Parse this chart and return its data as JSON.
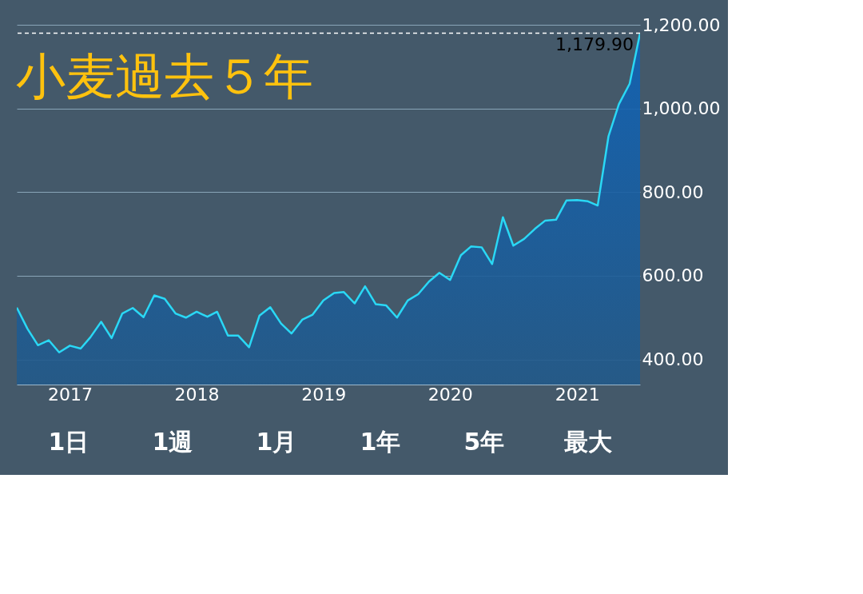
{
  "chart_data": {
    "type": "area",
    "title": "小麦過去５年",
    "x": [
      "2016-08",
      "2016-09",
      "2016-10",
      "2016-11",
      "2016-12",
      "2017-01",
      "2017-02",
      "2017-03",
      "2017-04",
      "2017-05",
      "2017-06",
      "2017-07",
      "2017-08",
      "2017-09",
      "2017-10",
      "2017-11",
      "2017-12",
      "2018-01",
      "2018-02",
      "2018-03",
      "2018-04",
      "2018-05",
      "2018-06",
      "2018-07",
      "2018-08",
      "2018-09",
      "2018-10",
      "2018-11",
      "2018-12",
      "2019-01",
      "2019-02",
      "2019-03",
      "2019-04",
      "2019-05",
      "2019-06",
      "2019-07",
      "2019-08",
      "2019-09",
      "2019-10",
      "2019-11",
      "2019-12",
      "2020-01",
      "2020-02",
      "2020-03",
      "2020-04",
      "2020-05",
      "2020-06",
      "2020-07",
      "2020-08",
      "2020-09",
      "2020-10",
      "2020-11",
      "2020-12",
      "2021-01",
      "2021-02",
      "2021-03",
      "2021-04",
      "2021-05",
      "2021-06",
      "2021-07"
    ],
    "series": [
      {
        "color": "#2ad8f5",
        "values": [
          524,
          473,
          434,
          446,
          417,
          433,
          426,
          453,
          490,
          451,
          510,
          523,
          501,
          553,
          545,
          510,
          500,
          514,
          502,
          514,
          457,
          457,
          429,
          505,
          525,
          486,
          462,
          495,
          507,
          541,
          559,
          561,
          534,
          575,
          532,
          529,
          500,
          541,
          556,
          586,
          607,
          590,
          649,
          670,
          668,
          628,
          740,
          672,
          688,
          712,
          732,
          734,
          780,
          781,
          778,
          768,
          933,
          1010,
          1059,
          1179.9
        ]
      }
    ],
    "xlim": [
      "2016-08",
      "2021-07"
    ],
    "xticks": [
      {
        "value": "2017",
        "label": "2017"
      },
      {
        "value": "2018",
        "label": "2018"
      },
      {
        "value": "2019",
        "label": "2019"
      },
      {
        "value": "2020",
        "label": "2020"
      },
      {
        "value": "2021",
        "label": "2021"
      }
    ],
    "ylim": [
      340,
      1200
    ],
    "yticks": [
      {
        "value": 400,
        "label": "400.00"
      },
      {
        "value": 600,
        "label": "600.00"
      },
      {
        "value": 800,
        "label": "800.00"
      },
      {
        "value": 1000,
        "label": "1,000.00"
      },
      {
        "value": 1200,
        "label": "1,200.00"
      }
    ],
    "ref_lines": [
      {
        "axis": "y",
        "value": 1179.9,
        "label": "1,179.90",
        "color": "#ffffff",
        "line_style": "dashed"
      }
    ],
    "grid": "y",
    "annotations": [
      "1日",
      "1週",
      "1月",
      "1年",
      "5年",
      "最大"
    ]
  }
}
